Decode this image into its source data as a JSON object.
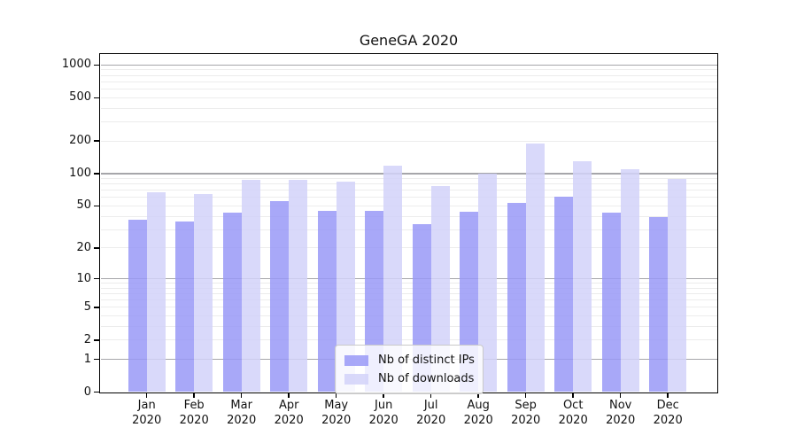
{
  "title": "GeneGA 2020",
  "colors": {
    "bar_distinct_ips": "rgba(153,153,247,0.85)",
    "bar_downloads": "rgba(210,210,249,0.85)",
    "gridline_major": "#a6a6aa",
    "gridline_minor": "#ececec",
    "axis_spine": "#000000",
    "legend_border": "#c9c9c9"
  },
  "legend": {
    "position": "lower center",
    "items": [
      {
        "label": "Nb of distinct IPs",
        "color": "rgba(153,153,247,0.85)"
      },
      {
        "label": "Nb of downloads",
        "color": "rgba(210,210,249,0.85)"
      }
    ]
  },
  "chart_data": {
    "type": "bar",
    "title": "GeneGA 2020",
    "categories": [
      "Jan 2020",
      "Feb 2020",
      "Mar 2020",
      "Apr 2020",
      "May 2020",
      "Jun 2020",
      "Jul 2020",
      "Aug 2020",
      "Sep 2020",
      "Oct 2020",
      "Nov 2020",
      "Dec 2020"
    ],
    "x_tick_month_line": [
      "Jan",
      "Feb",
      "Mar",
      "Apr",
      "May",
      "Jun",
      "Jul",
      "Aug",
      "Sep",
      "Oct",
      "Nov",
      "Dec"
    ],
    "x_tick_year_line": "2020",
    "series": [
      {
        "name": "Nb of distinct IPs",
        "color": "rgba(153,153,247,0.85)",
        "values": [
          37,
          36,
          43,
          55,
          45,
          45,
          34,
          44,
          53,
          61,
          43,
          39
        ]
      },
      {
        "name": "Nb of downloads",
        "color": "rgba(210,210,249,0.85)",
        "values": [
          67,
          65,
          87,
          87,
          85,
          118,
          77,
          100,
          190,
          130,
          110,
          90
        ]
      }
    ],
    "xlabel": "",
    "ylabel": "",
    "y_axis": {
      "scale": "symlog, position proportional to log10(1+value)",
      "tick_values": [
        0,
        1,
        2,
        5,
        10,
        20,
        50,
        100,
        200,
        500,
        1000
      ],
      "tick_labels": [
        "0",
        "1",
        "2",
        "5",
        "10",
        "20",
        "50",
        "100",
        "200",
        "500",
        "1000"
      ],
      "major_gridline_values": [
        1,
        10,
        100,
        1000
      ],
      "minor_gridline_multiples": [
        2,
        3,
        4,
        5,
        6,
        7,
        8,
        9
      ],
      "minor_gridline_decades": [
        1,
        10,
        100
      ],
      "ylim": [
        0,
        1260
      ]
    },
    "grid": "on",
    "legend_position": "lower center"
  }
}
